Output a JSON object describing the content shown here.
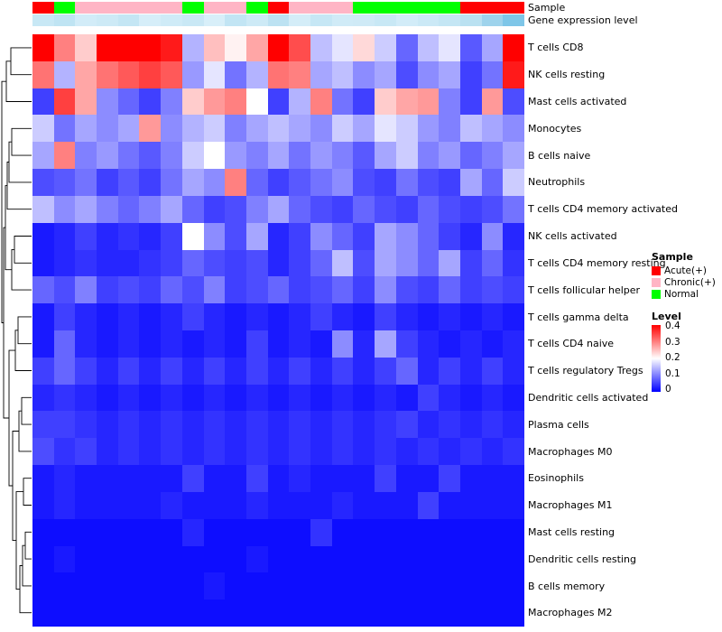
{
  "annotations": [
    {
      "label": "Sample"
    },
    {
      "label": "Gene expression level"
    }
  ],
  "legend": {
    "sample_title": "Sample",
    "sample_items": [
      {
        "label": "Acute(+)",
        "color": "#FF0000"
      },
      {
        "label": "Chronic(+)",
        "color": "#FFB5C5"
      },
      {
        "label": "Normal",
        "color": "#00FF00"
      }
    ],
    "level_title": "Level",
    "level_ticks": [
      "0.4",
      "0.3",
      "0.2",
      "0.1",
      "0"
    ],
    "level_colors": [
      "#FF0000",
      "#FFFFFF",
      "#0000FF"
    ]
  },
  "chart_data": {
    "type": "heatmap",
    "title": "",
    "columns": 23,
    "value_range": [
      0,
      0.4
    ],
    "colorscale": {
      "0": "#0000FF",
      "0.2": "#FFFFFF",
      "0.4": "#FF0000"
    },
    "rows": [
      "T cells CD8",
      "NK cells resting",
      "Mast cells activated",
      "Monocytes",
      "B cells naive",
      "Neutrophils",
      "T cells CD4 memory activated",
      "NK cells activated",
      "T cells CD4 memory resting",
      "T cells follicular helper",
      "T cells gamma delta",
      "T cells CD4 naive",
      "T cells regulatory  Tregs",
      "Dendritic cells activated",
      "Plasma cells",
      "Macrophages M0",
      "Eosinophils",
      "Macrophages M1",
      "Mast cells resting",
      "Dendritic cells resting",
      "B cells memory",
      "Macrophages M2"
    ],
    "values": [
      [
        0.4,
        0.3,
        0.24,
        0.4,
        0.4,
        0.4,
        0.38,
        0.14,
        0.25,
        0.21,
        0.27,
        0.4,
        0.34,
        0.15,
        0.18,
        0.23,
        0.16,
        0.08,
        0.15,
        0.18,
        0.07,
        0.13,
        0.4
      ],
      [
        0.31,
        0.14,
        0.27,
        0.31,
        0.33,
        0.35,
        0.33,
        0.12,
        0.18,
        0.09,
        0.14,
        0.31,
        0.3,
        0.13,
        0.15,
        0.11,
        0.13,
        0.06,
        0.11,
        0.13,
        0.05,
        0.09,
        0.38
      ],
      [
        0.05,
        0.35,
        0.27,
        0.11,
        0.08,
        0.05,
        0.1,
        0.24,
        0.28,
        0.3,
        0.2,
        0.05,
        0.14,
        0.3,
        0.09,
        0.05,
        0.24,
        0.27,
        0.28,
        0.1,
        0.05,
        0.28,
        0.06
      ],
      [
        0.16,
        0.09,
        0.13,
        0.11,
        0.13,
        0.28,
        0.11,
        0.14,
        0.16,
        0.1,
        0.13,
        0.15,
        0.13,
        0.11,
        0.16,
        0.13,
        0.18,
        0.16,
        0.12,
        0.1,
        0.15,
        0.13,
        0.11
      ],
      [
        0.13,
        0.3,
        0.1,
        0.12,
        0.09,
        0.07,
        0.1,
        0.16,
        0.2,
        0.12,
        0.1,
        0.13,
        0.09,
        0.12,
        0.1,
        0.07,
        0.13,
        0.16,
        0.1,
        0.12,
        0.08,
        0.1,
        0.13
      ],
      [
        0.06,
        0.07,
        0.09,
        0.05,
        0.07,
        0.05,
        0.09,
        0.13,
        0.11,
        0.3,
        0.08,
        0.05,
        0.07,
        0.09,
        0.11,
        0.06,
        0.05,
        0.09,
        0.06,
        0.05,
        0.13,
        0.08,
        0.16
      ],
      [
        0.15,
        0.11,
        0.13,
        0.1,
        0.08,
        0.1,
        0.13,
        0.08,
        0.05,
        0.06,
        0.1,
        0.13,
        0.08,
        0.06,
        0.05,
        0.08,
        0.06,
        0.05,
        0.08,
        0.06,
        0.05,
        0.06,
        0.09
      ],
      [
        0.02,
        0.03,
        0.05,
        0.03,
        0.04,
        0.03,
        0.05,
        0.2,
        0.11,
        0.06,
        0.13,
        0.03,
        0.05,
        0.11,
        0.08,
        0.05,
        0.13,
        0.11,
        0.08,
        0.05,
        0.03,
        0.11,
        0.03
      ],
      [
        0.02,
        0.03,
        0.04,
        0.03,
        0.03,
        0.04,
        0.05,
        0.08,
        0.06,
        0.05,
        0.06,
        0.03,
        0.05,
        0.08,
        0.15,
        0.06,
        0.13,
        0.11,
        0.08,
        0.13,
        0.05,
        0.08,
        0.04
      ],
      [
        0.08,
        0.06,
        0.1,
        0.05,
        0.06,
        0.05,
        0.08,
        0.06,
        0.1,
        0.05,
        0.06,
        0.08,
        0.05,
        0.06,
        0.08,
        0.05,
        0.11,
        0.06,
        0.05,
        0.08,
        0.05,
        0.06,
        0.05
      ],
      [
        0.02,
        0.05,
        0.03,
        0.02,
        0.03,
        0.02,
        0.03,
        0.05,
        0.03,
        0.02,
        0.03,
        0.02,
        0.03,
        0.05,
        0.03,
        0.02,
        0.05,
        0.03,
        0.02,
        0.03,
        0.02,
        0.03,
        0.02
      ],
      [
        0.02,
        0.08,
        0.03,
        0.02,
        0.03,
        0.02,
        0.03,
        0.02,
        0.03,
        0.02,
        0.05,
        0.02,
        0.03,
        0.02,
        0.11,
        0.03,
        0.13,
        0.05,
        0.03,
        0.02,
        0.03,
        0.02,
        0.03
      ],
      [
        0.05,
        0.08,
        0.05,
        0.03,
        0.05,
        0.03,
        0.05,
        0.03,
        0.05,
        0.03,
        0.05,
        0.03,
        0.05,
        0.03,
        0.05,
        0.03,
        0.05,
        0.08,
        0.03,
        0.05,
        0.03,
        0.05,
        0.03
      ],
      [
        0.03,
        0.04,
        0.03,
        0.02,
        0.03,
        0.02,
        0.03,
        0.02,
        0.03,
        0.02,
        0.03,
        0.02,
        0.03,
        0.02,
        0.03,
        0.02,
        0.03,
        0.02,
        0.05,
        0.03,
        0.02,
        0.03,
        0.02
      ],
      [
        0.05,
        0.05,
        0.04,
        0.03,
        0.04,
        0.03,
        0.04,
        0.03,
        0.04,
        0.03,
        0.04,
        0.03,
        0.04,
        0.03,
        0.04,
        0.03,
        0.04,
        0.05,
        0.03,
        0.04,
        0.03,
        0.04,
        0.03
      ],
      [
        0.06,
        0.04,
        0.05,
        0.03,
        0.04,
        0.03,
        0.04,
        0.03,
        0.04,
        0.03,
        0.04,
        0.03,
        0.04,
        0.03,
        0.04,
        0.03,
        0.04,
        0.03,
        0.04,
        0.03,
        0.04,
        0.03,
        0.04
      ],
      [
        0.02,
        0.03,
        0.02,
        0.02,
        0.02,
        0.02,
        0.02,
        0.05,
        0.02,
        0.02,
        0.05,
        0.02,
        0.03,
        0.02,
        0.02,
        0.02,
        0.05,
        0.02,
        0.02,
        0.05,
        0.02,
        0.02,
        0.02
      ],
      [
        0.02,
        0.03,
        0.02,
        0.02,
        0.02,
        0.02,
        0.03,
        0.02,
        0.02,
        0.02,
        0.03,
        0.02,
        0.02,
        0.02,
        0.03,
        0.02,
        0.02,
        0.02,
        0.05,
        0.02,
        0.02,
        0.02,
        0.02
      ],
      [
        0.01,
        0.01,
        0.01,
        0.01,
        0.01,
        0.01,
        0.01,
        0.03,
        0.01,
        0.01,
        0.01,
        0.01,
        0.01,
        0.04,
        0.01,
        0.01,
        0.01,
        0.01,
        0.01,
        0.01,
        0.01,
        0.01,
        0.01
      ],
      [
        0.01,
        0.02,
        0.01,
        0.01,
        0.01,
        0.01,
        0.01,
        0.01,
        0.01,
        0.01,
        0.02,
        0.01,
        0.01,
        0.01,
        0.01,
        0.01,
        0.01,
        0.01,
        0.01,
        0.01,
        0.01,
        0.01,
        0.01
      ],
      [
        0.01,
        0.01,
        0.01,
        0.01,
        0.01,
        0.01,
        0.01,
        0.01,
        0.02,
        0.01,
        0.01,
        0.01,
        0.01,
        0.01,
        0.01,
        0.01,
        0.01,
        0.01,
        0.01,
        0.01,
        0.01,
        0.01,
        0.01
      ],
      [
        0.01,
        0.01,
        0.01,
        0.01,
        0.01,
        0.01,
        0.01,
        0.01,
        0.01,
        0.01,
        0.01,
        0.01,
        0.01,
        0.01,
        0.01,
        0.01,
        0.01,
        0.01,
        0.01,
        0.01,
        0.01,
        0.01,
        0.01
      ]
    ],
    "column_annotations": {
      "sample": [
        "Acute(+)",
        "Normal",
        "Chronic(+)",
        "Chronic(+)",
        "Chronic(+)",
        "Chronic(+)",
        "Chronic(+)",
        "Normal",
        "Chronic(+)",
        "Chronic(+)",
        "Normal",
        "Acute(+)",
        "Chronic(+)",
        "Chronic(+)",
        "Chronic(+)",
        "Normal",
        "Normal",
        "Normal",
        "Normal",
        "Normal",
        "Acute(+)",
        "Acute(+)",
        "Acute(+)"
      ],
      "sample_colors": {
        "Acute(+)": "#FF0000",
        "Chronic(+)": "#FFB5C5",
        "Normal": "#00FF00"
      },
      "gene_expression_colors": [
        "#c8e8f5",
        "#bfe4f3",
        "#d2ecf8",
        "#cdeaf6",
        "#c4e6f4",
        "#d6eef9",
        "#cfebf7",
        "#c9e8f5",
        "#d8eff9",
        "#c2e5f4",
        "#cdeaf6",
        "#bce2f2",
        "#d4edf8",
        "#c6e7f5",
        "#d0ebf7",
        "#cfeaf6",
        "#c8e8f5",
        "#d2ecf8",
        "#cbe9f6",
        "#c4e6f4",
        "#bae1f1",
        "#9ed3ec",
        "#7ec6e8"
      ]
    }
  }
}
